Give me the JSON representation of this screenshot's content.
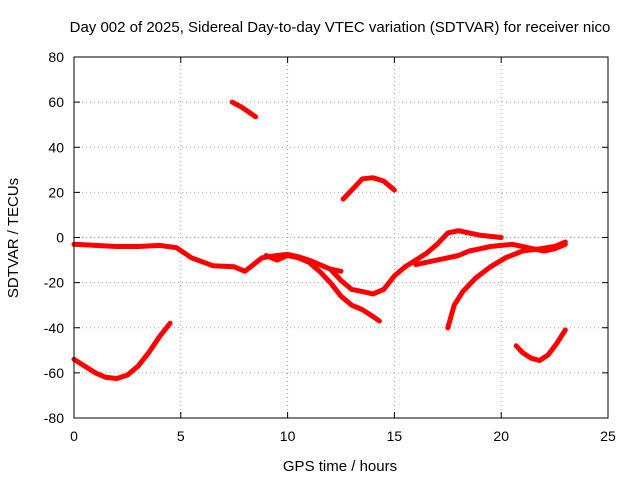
{
  "chart_data": {
    "type": "line",
    "title": "Day 002 of 2025, Sidereal Day-to-day VTEC variation (SDTVAR) for receiver nico",
    "xlabel": "GPS time / hours",
    "ylabel": "SDTVAR / TECUs",
    "xlim": [
      0,
      25
    ],
    "ylim": [
      -80,
      80
    ],
    "x_ticks": [
      0,
      5,
      10,
      15,
      20,
      25
    ],
    "y_ticks": [
      -80,
      -60,
      -40,
      -20,
      0,
      20,
      40,
      60,
      80
    ],
    "grid": true,
    "color": "#ff0000",
    "series": [
      {
        "name": "arc-morning-dip",
        "x": [
          0.0,
          0.5,
          1.0,
          1.5,
          2.0,
          2.5,
          3.0,
          3.5,
          4.0,
          4.5
        ],
        "y": [
          -54,
          -57,
          -60,
          -62,
          -62.5,
          -61,
          -57,
          -51,
          -44,
          -38
        ]
      },
      {
        "name": "arc-high-1",
        "x": [
          7.4,
          7.8,
          8.2,
          8.5
        ],
        "y": [
          60,
          58,
          55.5,
          53.5
        ]
      },
      {
        "name": "arc-high-2",
        "x": [
          12.6,
          13.0,
          13.5,
          14.0,
          14.5,
          15.0
        ],
        "y": [
          17,
          21,
          26,
          26.5,
          25,
          21
        ]
      },
      {
        "name": "arc-baseline",
        "x": [
          0,
          1,
          2,
          3,
          4,
          4.8,
          5.5,
          6.5,
          7.5,
          8.0,
          8.8,
          9.5,
          10.0,
          10.5,
          11.0,
          11.5,
          12.0,
          12.5
        ],
        "y": [
          -3,
          -3.5,
          -4,
          -4,
          -3.5,
          -4.5,
          -9,
          -12.5,
          -13,
          -15,
          -9,
          -8,
          -7.5,
          -8.5,
          -10,
          -12,
          -14,
          -15
        ]
      },
      {
        "name": "arc-midday-drop",
        "x": [
          9.0,
          9.5,
          10.0,
          10.5,
          11.0,
          11.5,
          12.0,
          12.5,
          13.0,
          13.5,
          14.0,
          14.3
        ],
        "y": [
          -8,
          -10,
          -8,
          -9,
          -11,
          -15,
          -20,
          -26,
          -30,
          -32,
          -35,
          -37
        ]
      },
      {
        "name": "arc-recovery",
        "x": [
          12.0,
          12.5,
          13.0,
          13.5,
          14.0,
          14.5,
          15.0,
          15.5,
          16.0,
          16.5,
          17.0,
          17.5,
          18.0,
          18.5,
          19.0,
          19.5,
          20.0
        ],
        "y": [
          -14,
          -19,
          -23,
          -24,
          -25,
          -23,
          -17,
          -13,
          -10,
          -7,
          -3,
          2,
          3,
          2,
          1,
          0.5,
          0
        ]
      },
      {
        "name": "arc-afternoon-rise",
        "x": [
          17.5,
          17.8,
          18.2,
          18.8,
          19.5,
          20.2,
          21.0,
          21.8,
          22.5,
          23.0
        ],
        "y": [
          -40,
          -30,
          -24,
          -18,
          -13,
          -9,
          -6,
          -5,
          -4,
          -2
        ]
      },
      {
        "name": "arc-late-flat",
        "x": [
          16.0,
          16.5,
          17.0,
          17.5,
          18.0,
          18.5,
          19.0,
          19.5,
          20.0,
          20.5,
          21.0,
          21.5,
          22.0,
          22.5,
          23.0
        ],
        "y": [
          -12,
          -11,
          -10,
          -9,
          -8,
          -6,
          -5,
          -4,
          -3.5,
          -3,
          -4,
          -5,
          -6,
          -5,
          -3
        ]
      },
      {
        "name": "arc-evening-dip",
        "x": [
          20.7,
          21.0,
          21.4,
          21.8,
          22.2,
          22.6,
          23.0
        ],
        "y": [
          -48,
          -51,
          -53.5,
          -54.5,
          -52,
          -47,
          -41
        ]
      }
    ]
  }
}
